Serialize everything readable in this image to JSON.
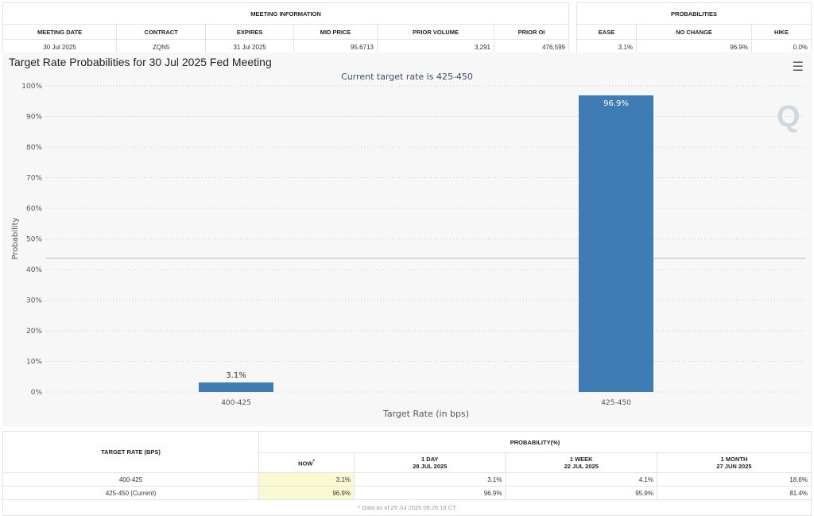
{
  "meeting_info": {
    "title": "MEETING INFORMATION",
    "headers": [
      "MEETING DATE",
      "CONTRACT",
      "EXPIRES",
      "MID PRICE",
      "PRIOR VOLUME",
      "PRIOR OI"
    ],
    "values": [
      "30 Jul 2025",
      "ZQN5",
      "31 Jul 2025",
      "95.6713",
      "3,291",
      "476,599"
    ]
  },
  "probabilities": {
    "title": "PROBABILITIES",
    "headers": [
      "EASE",
      "NO CHANGE",
      "HIKE"
    ],
    "values": [
      "3.1%",
      "96.9%",
      "0.0%"
    ]
  },
  "chart_data": {
    "type": "bar",
    "title": "Target Rate Probabilities for 30 Jul 2025 Fed Meeting",
    "subtitle": "Current target rate is 425-450",
    "xlabel": "Target Rate (in bps)",
    "ylabel": "Probability",
    "categories": [
      "400-425",
      "425-450"
    ],
    "values": [
      3.1,
      96.9
    ],
    "data_labels": [
      "3.1%",
      "96.9%"
    ],
    "ylim": [
      0,
      100
    ],
    "yticks": [
      "0%",
      "10%",
      "20%",
      "30%",
      "40%",
      "50%",
      "60%",
      "70%",
      "80%",
      "90%",
      "100%"
    ],
    "grid": true,
    "color": "#3f7cb6",
    "menu_icon": "hamburger-icon"
  },
  "bottom_table": {
    "col1": "TARGET RATE (BPS)",
    "group": "PROBABILITY(%)",
    "cols": [
      {
        "l1": "NOW",
        "l2": "",
        "mark": "*"
      },
      {
        "l1": "1 DAY",
        "l2": "28 JUL 2025"
      },
      {
        "l1": "1 WEEK",
        "l2": "22 JUL 2025"
      },
      {
        "l1": "1 MONTH",
        "l2": "27 JUN 2025"
      }
    ],
    "rows": [
      {
        "rate": "400-425",
        "v": [
          "3.1%",
          "3.1%",
          "4.1%",
          "18.6%"
        ]
      },
      {
        "rate": "425-450 (Current)",
        "v": [
          "96.9%",
          "96.9%",
          "95.9%",
          "81.4%"
        ]
      }
    ],
    "footnote": "* Data as of 29 Jul 2025 06:26:18 CT"
  }
}
